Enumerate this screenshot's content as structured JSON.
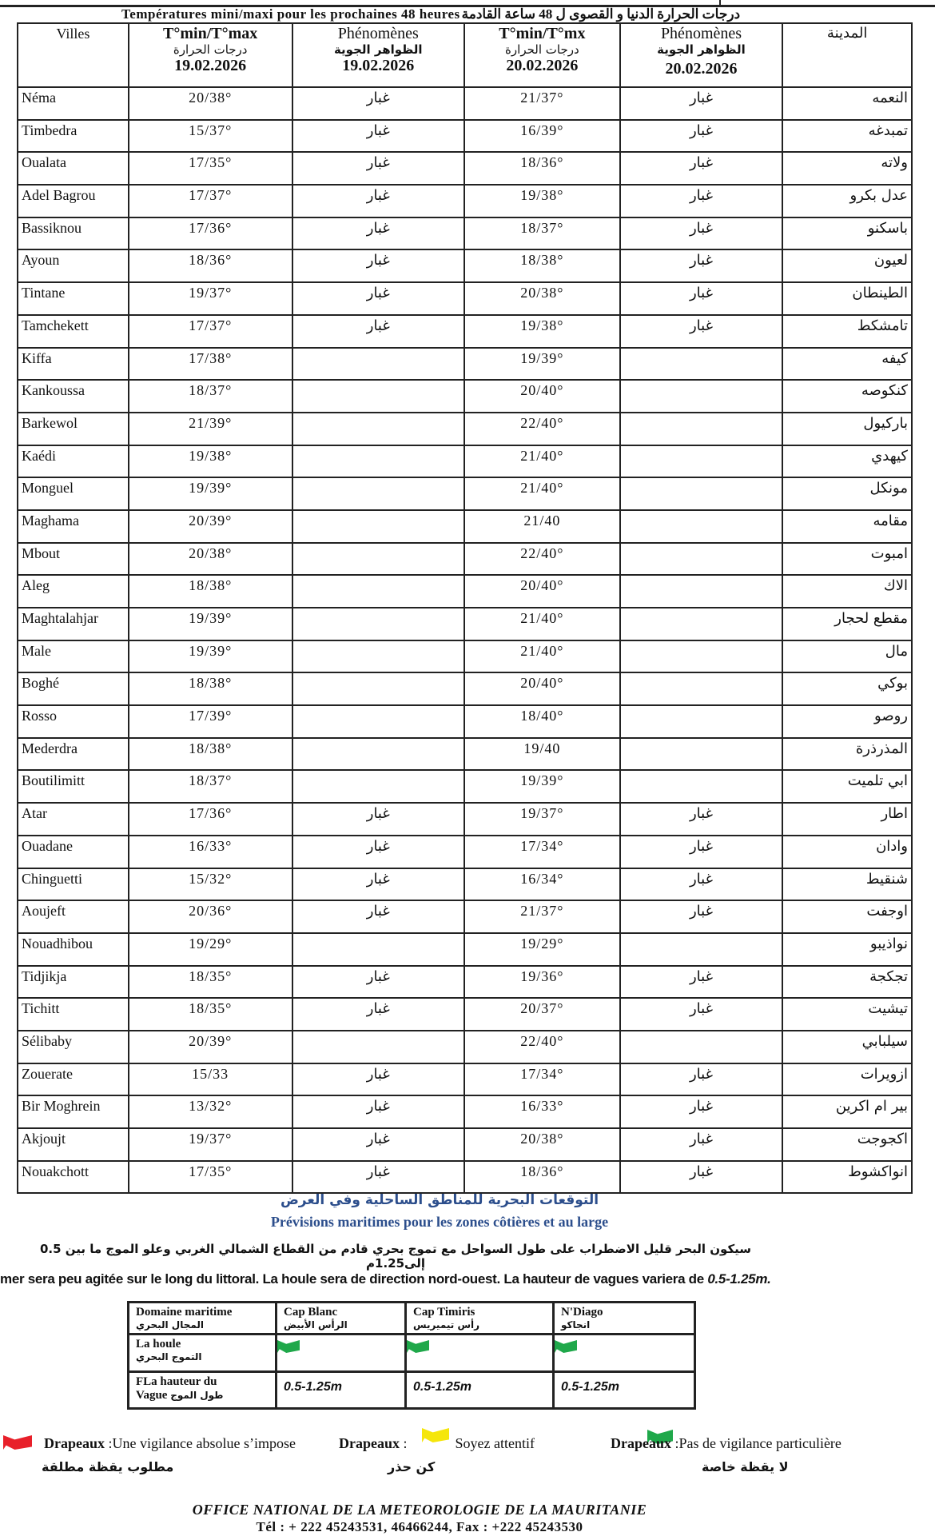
{
  "title": {
    "fr": "Températures mini/maxi  pour  les prochaines  48  heures",
    "ar": "درجات الحرارة الدنيا و القصوى ل 48 ساعة القادمة"
  },
  "headers": {
    "villes": "Villes",
    "tmin1": "T°min/T°max",
    "tmin1_ar": "درجات الحرارة",
    "date1": "19.02.2026",
    "phen1": "Phénomènes",
    "phen1_ar": "الظواهر الجوية",
    "date1b": "19.02.2026",
    "tmin2": "T°min/T°mx",
    "tmin2_ar": "درجات الحرارة",
    "date2": "20.02.2026",
    "phen2": "Phénomènes",
    "phen2_ar": "الظواهر الجوية",
    "date2b": "20.02.2026",
    "ar": "المدينة"
  },
  "rows": [
    {
      "city": "Néma",
      "t1": "20/38°",
      "p1": "غبار",
      "t2": "21/37°",
      "p2": "غبار",
      "ar": "النعمه"
    },
    {
      "city": "Timbedra",
      "t1": "15/37°",
      "p1": "غبار",
      "t2": "16/39°",
      "p2": "غبار",
      "ar": "تمبدغه"
    },
    {
      "city": "Oualata",
      "t1": "17/35°",
      "p1": "غبار",
      "t2": "18/36°",
      "p2": "غبار",
      "ar": "ولاته"
    },
    {
      "city": "Adel Bagrou",
      "t1": "17/37°",
      "p1": "غبار",
      "t2": "19/38°",
      "p2": "غبار",
      "ar": "عدل بكرو"
    },
    {
      "city": "Bassiknou",
      "t1": "17/36°",
      "p1": "غبار",
      "t2": "18/37°",
      "p2": "غبار",
      "ar": "باسكنو"
    },
    {
      "city": "Ayoun",
      "t1": "18/36°",
      "p1": "غبار",
      "t2": "18/38°",
      "p2": "غبار",
      "ar": "لعيون"
    },
    {
      "city": "Tintane",
      "t1": "19/37°",
      "p1": "غبار",
      "t2": "20/38°",
      "p2": "غبار",
      "ar": "الطينطان"
    },
    {
      "city": "Tamchekett",
      "t1": "17/37°",
      "p1": "غبار",
      "t2": "19/38°",
      "p2": "غبار",
      "ar": "تامشكط"
    },
    {
      "city": "Kiffa",
      "t1": "17/38°",
      "p1": "",
      "t2": "19/39°",
      "p2": "",
      "ar": "كيفه"
    },
    {
      "city": "Kankoussa",
      "t1": "18/37°",
      "p1": "",
      "t2": "20/40°",
      "p2": "",
      "ar": "كنكوصه"
    },
    {
      "city": "Barkewol",
      "t1": "21/39°",
      "p1": "",
      "t2": "22/40°",
      "p2": "",
      "ar": "باركيول"
    },
    {
      "city": "Kaédi",
      "t1": "19/38°",
      "p1": "",
      "t2": "21/40°",
      "p2": "",
      "ar": "كيهدي"
    },
    {
      "city": "Monguel",
      "t1": "19/39°",
      "p1": "",
      "t2": "21/40°",
      "p2": "",
      "ar": "مونكل"
    },
    {
      "city": "Maghama",
      "t1": "20/39°",
      "p1": "",
      "t2": "21/40",
      "p2": "",
      "ar": "مقامه"
    },
    {
      "city": "Mbout",
      "t1": "20/38°",
      "p1": "",
      "t2": "22/40°",
      "p2": "",
      "ar": "امبوت"
    },
    {
      "city": "Aleg",
      "t1": "18/38°",
      "p1": "",
      "t2": "20/40°",
      "p2": "",
      "ar": "الاك"
    },
    {
      "city": "Maghtalahjar",
      "t1": "19/39°",
      "p1": "",
      "t2": "21/40°",
      "p2": "",
      "ar": "مقطع لحجار"
    },
    {
      "city": "Male",
      "t1": "19/39°",
      "p1": "",
      "t2": "21/40°",
      "p2": "",
      "ar": "مال"
    },
    {
      "city": "Boghé",
      "t1": "18/38°",
      "p1": "",
      "t2": "20/40°",
      "p2": "",
      "ar": "بوكي"
    },
    {
      "city": "Rosso",
      "t1": "17/39°",
      "p1": "",
      "t2": "18/40°",
      "p2": "",
      "ar": "روصو"
    },
    {
      "city": "Mederdra",
      "t1": "18/38°",
      "p1": "",
      "t2": "19/40",
      "p2": "",
      "ar": "المذرذرة"
    },
    {
      "city": "Boutilimitt",
      "t1": "18/37°",
      "p1": "",
      "t2": "19/39°",
      "p2": "",
      "ar": "ابي تلميت"
    },
    {
      "city": "Atar",
      "t1": "17/36°",
      "p1": "غبار",
      "t2": "19/37°",
      "p2": "غبار",
      "ar": "اطار"
    },
    {
      "city": "Ouadane",
      "t1": "16/33°",
      "p1": "غبار",
      "t2": "17/34°",
      "p2": "غبار",
      "ar": "وادان"
    },
    {
      "city": "Chinguetti",
      "t1": "15/32°",
      "p1": "غبار",
      "t2": "16/34°",
      "p2": "غبار",
      "ar": "شنقيط"
    },
    {
      "city": "Aoujeft",
      "t1": "20/36°",
      "p1": "غبار",
      "t2": "21/37°",
      "p2": "غبار",
      "ar": "اوجفت"
    },
    {
      "city": "Nouadhibou",
      "t1": "19/29°",
      "p1": "",
      "t2": "19/29°",
      "p2": "",
      "ar": "نواذيبو"
    },
    {
      "city": "Tidjikja",
      "t1": "18/35°",
      "p1": "غبار",
      "t2": "19/36°",
      "p2": "غبار",
      "ar": "تجكجة"
    },
    {
      "city": "Tichitt",
      "t1": "18/35°",
      "p1": "غبار",
      "t2": "20/37°",
      "p2": "غبار",
      "ar": "تيشيت"
    },
    {
      "city": "Sélibaby",
      "t1": "20/39°",
      "p1": "",
      "t2": "22/40°",
      "p2": "",
      "ar": "سيلبابي"
    },
    {
      "city": "Zouerate",
      "t1": "15/33",
      "p1": "غبار",
      "t2": "17/34°",
      "p2": "غبار",
      "ar": "ازويرات"
    },
    {
      "city": "Bir Moghrein",
      "t1": "13/32°",
      "p1": "غبار",
      "t2": "16/33°",
      "p2": "غبار",
      "ar": "بير ام اكرين"
    },
    {
      "city": "Akjoujt",
      "t1": "19/37°",
      "p1": "غبار",
      "t2": "20/38°",
      "p2": "غبار",
      "ar": "اكجوجت"
    },
    {
      "city": "Nouakchott",
      "t1": "17/35°",
      "p1": "غبار",
      "t2": "18/36°",
      "p2": "غبار",
      "ar": "انواكشوط"
    }
  ],
  "marine": {
    "title_ar": "التوقعات البحرية للمناطق الساحلية وفي العرض",
    "title_fr": "Prévisions maritimes  pour les  zones  côtières et au large",
    "text_ar": "سيكون البحر قليل الاضطراب على طول السواحل مع تموج بحري قادم من القطاع الشمالي الغربي وعلو الموج ما بين 0.5 إلى1.25م",
    "text_fr": "mer sera peu agitée sur le long du littoral. La houle sera de direction nord-ouest.  La hauteur de vagues variera de ",
    "text_fr_val": "0.5-1.25m.",
    "table": {
      "domain": "Domaine maritime",
      "domain_ar": "المجال البحري",
      "zones": [
        {
          "fr": "Cap Blanc",
          "ar": "الرأس الأبيض",
          "flag": "#1fa84a",
          "height": "0.5-1.25m"
        },
        {
          "fr": "Cap Timiris",
          "ar": "رأس تيميريس",
          "flag": "#1fa84a",
          "height": "0.5-1.25m"
        },
        {
          "fr": "N'Diago",
          "ar": "انجاكو",
          "flag": "#1fa84a",
          "height": "0.5-1.25m"
        }
      ],
      "houle": "La houle",
      "houle_ar": "التموج البحري",
      "hauteur": "FLa hauteur du",
      "hauteur2": "Vague",
      "hauteur_ar": "طول الموج"
    }
  },
  "legend": [
    {
      "color": "#e8202a",
      "label": "Drapeaux",
      "text": " :Une vigilance absolue s’impose",
      "ar": "مطلوب يقظة مطلقة"
    },
    {
      "color": "#f5e60a",
      "label": "Drapeaux",
      "text": " :",
      "text2": "Soyez attentif",
      "ar": "كن حذر"
    },
    {
      "color": "#1fa84a",
      "label": "Drapeaux",
      "text": " :Pas de vigilance particulière",
      "ar": "لا يقظة خاصة"
    }
  ],
  "footer": {
    "org": "OFFICE NATIONAL DE LA METEOROLOGIE DE LA MAURITANIE",
    "contact": "Tél : + 222  45243531,  46466244,   Fax : +222  45243530"
  }
}
